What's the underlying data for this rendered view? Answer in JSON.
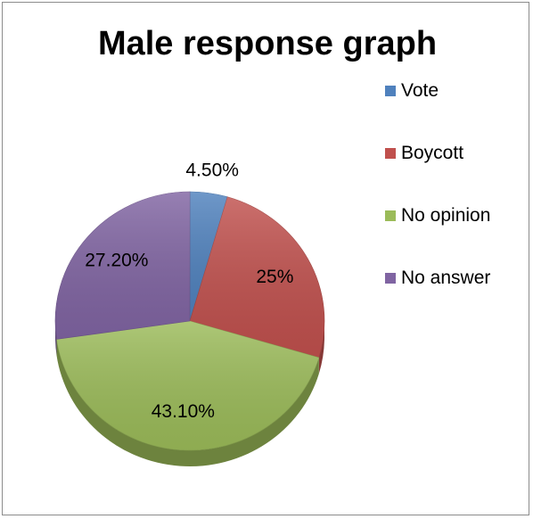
{
  "chart_data": {
    "type": "pie",
    "title": "Male response graph",
    "slices": [
      {
        "label": "Vote",
        "value": 4.5,
        "data_label": "4.50%",
        "color": "#4f81bd"
      },
      {
        "label": "Boycott",
        "value": 25.0,
        "data_label": "25%",
        "color": "#c0504d"
      },
      {
        "label": "No opinion",
        "value": 43.1,
        "data_label": "43.10%",
        "color": "#9bbb59"
      },
      {
        "label": "No answer",
        "value": 27.2,
        "data_label": "27.20%",
        "color": "#8064a2"
      }
    ],
    "legend_position": "right",
    "start_angle": "12 o'clock, clockwise",
    "style": "3d"
  }
}
